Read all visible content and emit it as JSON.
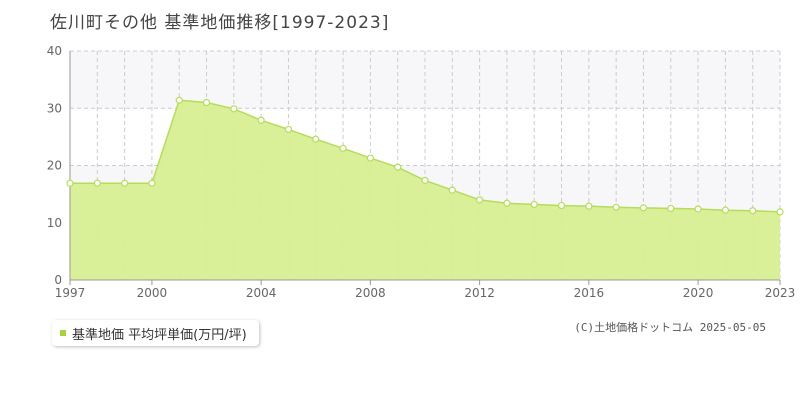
{
  "page": {
    "title": "佐川町その他 基準地価推移[1997-2023]",
    "copyright": "(C)土地価格ドットコム 2025-05-05"
  },
  "colors": {
    "fill": "#d7ee92",
    "line": "#b6dc5c",
    "marker_fill": "#ffffff",
    "legend_swatch": "#a8d040",
    "grid": "#cccccc",
    "band": "#f7f7f9"
  },
  "chart_data": {
    "type": "area",
    "title": "佐川町その他 基準地価推移[1997-2023]",
    "xlabel": "",
    "ylabel": "",
    "xlim": [
      1997,
      2023
    ],
    "ylim": [
      0,
      40
    ],
    "yticks": [
      0,
      10,
      20,
      30,
      40
    ],
    "xticks": [
      1997,
      2000,
      2004,
      2008,
      2012,
      2016,
      2020,
      2023
    ],
    "grid": true,
    "legend_position": "bottom-left",
    "series": [
      {
        "name": "基準地価 平均坪単価(万円/坪)",
        "x": [
          1997,
          1998,
          1999,
          2000,
          2001,
          2002,
          2003,
          2004,
          2005,
          2006,
          2007,
          2008,
          2009,
          2010,
          2011,
          2012,
          2013,
          2014,
          2015,
          2016,
          2017,
          2018,
          2019,
          2020,
          2021,
          2022,
          2023
        ],
        "values": [
          16.9,
          16.9,
          16.9,
          16.9,
          31.4,
          31.0,
          29.9,
          27.9,
          26.3,
          24.6,
          23.0,
          21.3,
          19.7,
          17.4,
          15.7,
          14.0,
          13.4,
          13.2,
          13.0,
          12.9,
          12.7,
          12.6,
          12.5,
          12.4,
          12.2,
          12.1,
          11.9
        ]
      }
    ]
  }
}
